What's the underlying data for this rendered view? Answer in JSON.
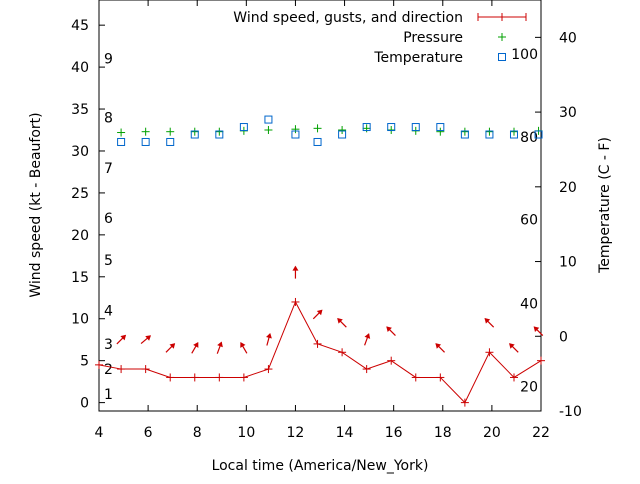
{
  "chart_data": {
    "type": "line",
    "xlabel": "Local time (America/New_York)",
    "ylabel": "Wind speed (kt - Beaufort)",
    "y2label": "Temperature (C - F)",
    "xlim": [
      4,
      22
    ],
    "ylim": [
      -1,
      48
    ],
    "y2lim": [
      -10,
      45
    ],
    "x_ticks": [
      "4",
      "6",
      "8",
      "10",
      "12",
      "14",
      "16",
      "18",
      "20",
      "22"
    ],
    "y_ticks": [
      "0",
      "5",
      "10",
      "15",
      "20",
      "25",
      "30",
      "35",
      "40",
      "45"
    ],
    "y2_ticks": [
      "-10",
      "0",
      "10",
      "20",
      "30",
      "40"
    ],
    "beaufort_labels": [
      {
        "text": "1",
        "y": 1
      },
      {
        "text": "2",
        "y": 4
      },
      {
        "text": "3",
        "y": 7
      },
      {
        "text": "4",
        "y": 11
      },
      {
        "text": "5",
        "y": 17
      },
      {
        "text": "6",
        "y": 22
      },
      {
        "text": "7",
        "y": 28
      },
      {
        "text": "8",
        "y": 34
      },
      {
        "text": "9",
        "y": 41
      }
    ],
    "fahrenheit_labels": [
      {
        "text": "20",
        "y": -6.7
      },
      {
        "text": "40",
        "y": 4.4
      },
      {
        "text": "60",
        "y": 15.6
      },
      {
        "text": "80",
        "y": 26.7
      },
      {
        "text": "100",
        "y": 37.8
      }
    ],
    "legend": [
      {
        "name": "Wind speed, gusts, and direction",
        "color": "#cc0000",
        "marker": "plus-line"
      },
      {
        "name": "Pressure",
        "color": "#00a000",
        "marker": "plus"
      },
      {
        "name": "Temperature",
        "color": "#0066cc",
        "marker": "square"
      }
    ],
    "series": [
      {
        "name": "Wind speed, gusts, and direction",
        "color": "#cc0000",
        "x": [
          4,
          4.9,
          5.9,
          6.9,
          7.9,
          8.9,
          9.9,
          10.9,
          12,
          12.9,
          13.9,
          14.9,
          15.9,
          16.9,
          17.9,
          18.9,
          19.9,
          20.9,
          22
        ],
        "y": [
          4.5,
          4,
          4,
          3,
          3,
          3,
          3,
          4,
          12,
          7,
          6,
          4,
          5,
          3,
          3,
          0,
          6,
          3,
          5
        ]
      },
      {
        "name": "Wind direction arrows",
        "color": "#cc0000",
        "points": [
          {
            "x": 4.9,
            "y": 7.5,
            "angle": 45
          },
          {
            "x": 5.9,
            "y": 7.5,
            "angle": 50
          },
          {
            "x": 6.9,
            "y": 6.5,
            "angle": 45
          },
          {
            "x": 7.9,
            "y": 6.5,
            "angle": 30
          },
          {
            "x": 8.9,
            "y": 6.5,
            "angle": 20
          },
          {
            "x": 9.9,
            "y": 6.5,
            "angle": -30
          },
          {
            "x": 10.9,
            "y": 7.5,
            "angle": 15
          },
          {
            "x": 12,
            "y": 15.5,
            "angle": 0
          },
          {
            "x": 12.9,
            "y": 10.5,
            "angle": 45
          },
          {
            "x": 13.9,
            "y": 9.5,
            "angle": -45
          },
          {
            "x": 14.9,
            "y": 7.5,
            "angle": 20
          },
          {
            "x": 15.9,
            "y": 8.5,
            "angle": -45
          },
          {
            "x": 17.9,
            "y": 6.5,
            "angle": -45
          },
          {
            "x": 19.9,
            "y": 9.5,
            "angle": -45
          },
          {
            "x": 20.9,
            "y": 6.5,
            "angle": -45
          },
          {
            "x": 21.9,
            "y": 8.5,
            "angle": -45
          }
        ]
      },
      {
        "name": "Pressure",
        "color": "#00a000",
        "x": [
          4.9,
          5.9,
          6.9,
          7.9,
          8.9,
          9.9,
          10.9,
          12,
          12.9,
          13.9,
          14.9,
          15.9,
          16.9,
          17.9,
          18.9,
          19.9,
          20.9,
          21.9
        ],
        "y": [
          32.2,
          32.3,
          32.3,
          32.3,
          32.3,
          32.4,
          32.5,
          32.6,
          32.7,
          32.5,
          32.7,
          32.5,
          32.4,
          32.3,
          32.3,
          32.3,
          32.3,
          32.4
        ]
      },
      {
        "name": "Temperature",
        "color": "#0066cc",
        "x": [
          4.9,
          5.9,
          6.9,
          7.9,
          8.9,
          9.9,
          10.9,
          12,
          12.9,
          13.9,
          14.9,
          15.9,
          16.9,
          17.9,
          18.9,
          19.9,
          20.9,
          21.9
        ],
        "y": [
          26,
          26,
          26,
          27,
          27,
          28,
          29,
          27,
          26,
          27,
          28,
          28,
          28,
          28,
          27,
          27,
          27,
          27
        ]
      }
    ]
  }
}
